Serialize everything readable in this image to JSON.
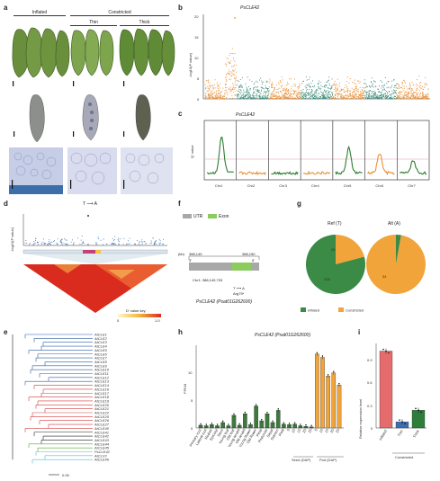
{
  "panel_labels": {
    "a": "a",
    "b": "b",
    "c": "c",
    "d": "d",
    "e": "e",
    "f": "f",
    "g": "g",
    "h": "h",
    "i": "i"
  },
  "a": {
    "inflated": "Inflated",
    "constricted": "Constricted",
    "thin": "Thin",
    "thick": "Thick"
  },
  "b": {
    "gene": "PsCLE42",
    "ylabel": "-log10(P value)",
    "yticks": [
      "0",
      "5",
      "10",
      "15",
      "20"
    ]
  },
  "c": {
    "gene": "PsCLE42",
    "ylabel": "Q' value",
    "chromosomes": [
      "Chr1",
      "Chr2",
      "Chr3",
      "Chr4",
      "Chr5",
      "Chr6",
      "Chr7"
    ]
  },
  "d": {
    "snp": "T ⟶ A",
    "ylabel": "-log10(P value)",
    "colorbar_label": "D' value key",
    "cb_min": "0",
    "cb_max": "1.0"
  },
  "e": {
    "scale": "0.05",
    "labels": [
      "AtCLE1",
      "AtCLE2",
      "AtCLE3",
      "AtCLE4",
      "AtCLE5",
      "AtCLE6",
      "AtCLE7",
      "AtCLE8",
      "AtCLE9",
      "AtCLE10",
      "AtCLE11",
      "AtCLE12",
      "AtCLE13",
      "AtCLE14",
      "AtCLE16",
      "AtCLE17",
      "AtCLE18",
      "AtCLE19",
      "AtCLE20",
      "AtCLE21",
      "AtCLE22",
      "AtCLE25",
      "AtCLE26",
      "AtCLE27",
      "AtCLE40",
      "AtCLE41",
      "AtCLE42",
      "AtCLE43",
      "AtCLE44",
      "AtCLE45",
      "PsCLE42",
      "AtCLV3",
      "AtCLE46"
    ]
  },
  "f": {
    "utr": "UTR",
    "exon": "Exon",
    "kb": "(kb)",
    "start": "388,149",
    "end": "388,150",
    "left_prime": "3'",
    "right_prime": "5'",
    "pos": "Chr1: 388,149,703",
    "snp": "T ⟶ A",
    "aa": "Arg79*",
    "gene": "PsCLE42 (Psat01G262600)"
  },
  "g": {
    "ref": "Ref (T)",
    "alt": "Alt (A)",
    "legend_inflated": "Inflated",
    "legend_constricted": "Constricted",
    "ref_infl": "106",
    "ref_cons": "28",
    "alt_cons": "34",
    "alt_infl": "1"
  },
  "h": {
    "title": "PsCLE42 (Psat01G262600)",
    "ylabel": "FPKM",
    "yticks": [
      "0",
      "5",
      "10"
    ],
    "seed_label": "Seed (DAP)",
    "pod_label": "Pod (DAP)"
  },
  "i": {
    "ylabel": "Relative expression level",
    "yticks": [
      "0",
      "0.3",
      "0.6",
      "0.9"
    ],
    "constricted": "Constricted"
  },
  "chart_data": [
    {
      "type": "bar",
      "panel": "h",
      "title": "PsCLE42 (Psat01G262600)",
      "ylabel": "FPKM",
      "ylim": [
        0,
        15
      ],
      "categories": [
        "Primary root",
        "Lateral root",
        "Nodule",
        "Epicotyl",
        "Stem",
        "Young leaf",
        "Old leaf",
        "Young tendril",
        "Old tendril",
        "Young flower",
        "Old flower",
        "Petal",
        "Peduncle",
        "Sepal",
        "Stamen",
        "Pistil",
        "Seed 5",
        "Seed 10",
        "Seed 15",
        "Seed 20",
        "Seed 25",
        "Pod 5",
        "Pod 10",
        "Pod 15",
        "Pod 20",
        "Pod 25"
      ],
      "values": [
        0.5,
        0.4,
        0.6,
        0.4,
        1.0,
        0.4,
        2.3,
        0.5,
        2.6,
        0.6,
        4.0,
        1.3,
        2.6,
        1.0,
        3.2,
        0.7,
        0.6,
        0.7,
        0.4,
        0.3,
        0.2,
        13.4,
        12.8,
        9.4,
        10.0,
        7.8
      ]
    },
    {
      "type": "bar",
      "panel": "i",
      "ylabel": "Relative expression level",
      "ylim": [
        0,
        1.1
      ],
      "categories": [
        "Inflated",
        "Thin",
        "Thick"
      ],
      "values": [
        1.0,
        0.08,
        0.23
      ],
      "colors": [
        "#e46c6c",
        "#3a6fb7",
        "#2f7d3b"
      ]
    },
    {
      "type": "pie",
      "panel": "g",
      "title": "Ref (T)",
      "labels": [
        "Inflated",
        "Constricted"
      ],
      "values": [
        106,
        28
      ],
      "colors": [
        "#3b8a46",
        "#f0a43a"
      ]
    },
    {
      "type": "pie",
      "panel": "g",
      "title": "Alt (A)",
      "labels": [
        "Inflated",
        "Constricted"
      ],
      "values": [
        1,
        34
      ],
      "colors": [
        "#3b8a46",
        "#f0a43a"
      ]
    }
  ]
}
